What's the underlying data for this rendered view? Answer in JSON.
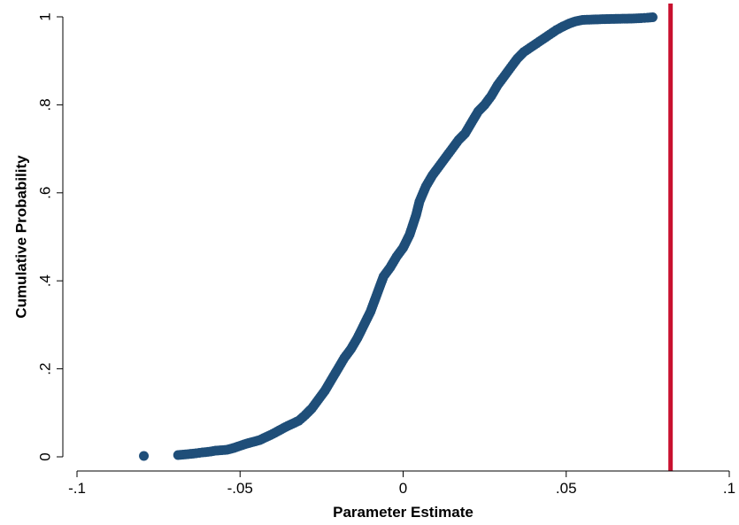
{
  "chart_data": {
    "type": "scatter",
    "title": "",
    "xlabel": "Parameter Estimate",
    "ylabel": "Cumulative Probability",
    "xlim": [
      -0.1,
      0.1
    ],
    "ylim": [
      0,
      1
    ],
    "x_ticks": [
      {
        "value": -0.1,
        "label": "-.1"
      },
      {
        "value": -0.05,
        "label": "-.05"
      },
      {
        "value": 0,
        "label": "0"
      },
      {
        "value": 0.05,
        "label": ".05"
      },
      {
        "value": 0.1,
        "label": ".1"
      }
    ],
    "y_ticks": [
      {
        "value": 0,
        "label": "0"
      },
      {
        "value": 0.2,
        "label": ".2"
      },
      {
        "value": 0.4,
        "label": ".4"
      },
      {
        "value": 0.6,
        "label": ".6"
      },
      {
        "value": 0.8,
        "label": ".8"
      },
      {
        "value": 1,
        "label": "1"
      }
    ],
    "grid": false,
    "marker_color": "#1f4e79",
    "reference_line": {
      "x": 0.082,
      "color": "#c8102e"
    },
    "series": [
      {
        "points": [
          [
            -0.0795,
            0.002
          ],
          [
            -0.069,
            0.004
          ],
          [
            -0.066,
            0.006
          ],
          [
            -0.0635,
            0.008
          ],
          [
            -0.0615,
            0.01
          ],
          [
            -0.059,
            0.012
          ],
          [
            -0.0575,
            0.014
          ],
          [
            -0.054,
            0.016
          ],
          [
            -0.052,
            0.02
          ],
          [
            -0.05,
            0.025
          ],
          [
            -0.048,
            0.03
          ],
          [
            -0.046,
            0.034
          ],
          [
            -0.044,
            0.038
          ],
          [
            -0.042,
            0.045
          ],
          [
            -0.04,
            0.052
          ],
          [
            -0.038,
            0.06
          ],
          [
            -0.036,
            0.068
          ],
          [
            -0.034,
            0.075
          ],
          [
            -0.032,
            0.082
          ],
          [
            -0.03,
            0.095
          ],
          [
            -0.028,
            0.11
          ],
          [
            -0.026,
            0.13
          ],
          [
            -0.024,
            0.15
          ],
          [
            -0.022,
            0.175
          ],
          [
            -0.02,
            0.2
          ],
          [
            -0.018,
            0.225
          ],
          [
            -0.016,
            0.245
          ],
          [
            -0.014,
            0.27
          ],
          [
            -0.012,
            0.3
          ],
          [
            -0.01,
            0.33
          ],
          [
            -0.008,
            0.37
          ],
          [
            -0.006,
            0.41
          ],
          [
            -0.004,
            0.43
          ],
          [
            -0.002,
            0.455
          ],
          [
            0.0,
            0.475
          ],
          [
            0.002,
            0.505
          ],
          [
            0.004,
            0.55
          ],
          [
            0.005,
            0.58
          ],
          [
            0.007,
            0.615
          ],
          [
            0.009,
            0.64
          ],
          [
            0.011,
            0.66
          ],
          [
            0.013,
            0.68
          ],
          [
            0.015,
            0.7
          ],
          [
            0.017,
            0.72
          ],
          [
            0.019,
            0.735
          ],
          [
            0.021,
            0.76
          ],
          [
            0.023,
            0.785
          ],
          [
            0.025,
            0.8
          ],
          [
            0.027,
            0.82
          ],
          [
            0.029,
            0.845
          ],
          [
            0.031,
            0.865
          ],
          [
            0.033,
            0.885
          ],
          [
            0.035,
            0.905
          ],
          [
            0.037,
            0.92
          ],
          [
            0.039,
            0.93
          ],
          [
            0.041,
            0.94
          ],
          [
            0.043,
            0.95
          ],
          [
            0.045,
            0.96
          ],
          [
            0.047,
            0.97
          ],
          [
            0.049,
            0.978
          ],
          [
            0.051,
            0.985
          ],
          [
            0.053,
            0.99
          ],
          [
            0.055,
            0.993
          ],
          [
            0.0625,
            0.995
          ],
          [
            0.07,
            0.996
          ],
          [
            0.073,
            0.997
          ],
          [
            0.075,
            0.998
          ],
          [
            0.0765,
            0.999
          ]
        ]
      }
    ]
  }
}
